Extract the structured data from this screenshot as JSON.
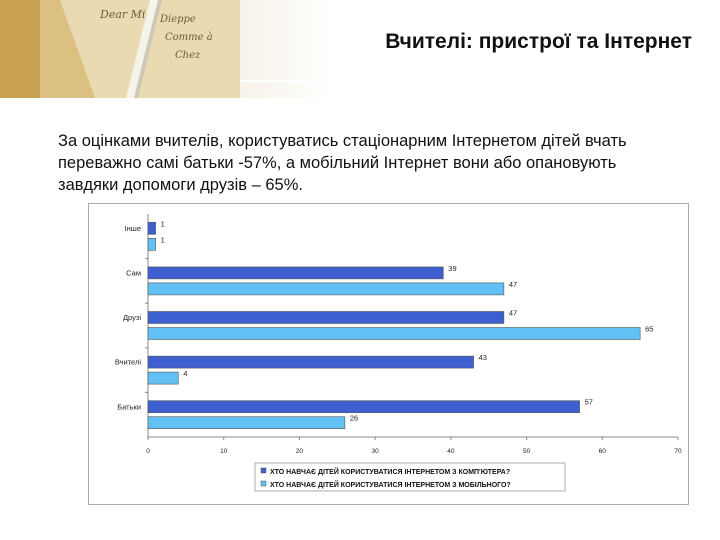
{
  "header": {
    "title": "Вчителі: пристрої та Інтернет",
    "photo_text": [
      "Dear Mi",
      "Dieppe",
      "Comme à",
      "Chez"
    ]
  },
  "intro_text": "За оцінками вчителів, користуватись стаціонарним Інтернетом дітей вчать переважно самі батьки -57%, а мобільний Інтернет вони або опановують завдяки допомоги друзів – 65%.",
  "colors": {
    "series1": "#3d5fd0",
    "series2": "#63c0f5"
  },
  "chart_data": {
    "type": "bar",
    "orientation": "horizontal",
    "categories": [
      "Інше",
      "Сам",
      "Друзі",
      "Вчителі",
      "Батьки"
    ],
    "series": [
      {
        "name": "ХТО НАВЧАЄ ДІТЕЙ КОРИСТУВАТИСЯ ІНТЕРНЕТОМ З КОМП'ЮТЕРА?",
        "values": [
          1,
          39,
          47,
          43,
          57
        ]
      },
      {
        "name": "ХТО НАВЧАЄ ДІТЕЙ КОРИСТУВАТИСЯ ІНТЕРНЕТОМ З МОБІЛЬНОГО?",
        "values": [
          1,
          47,
          65,
          4,
          26
        ]
      }
    ],
    "xlim": [
      0,
      70
    ],
    "xticks": [
      0,
      10,
      20,
      30,
      40,
      50,
      60,
      70
    ],
    "grid": false,
    "legend_position": "bottom"
  }
}
